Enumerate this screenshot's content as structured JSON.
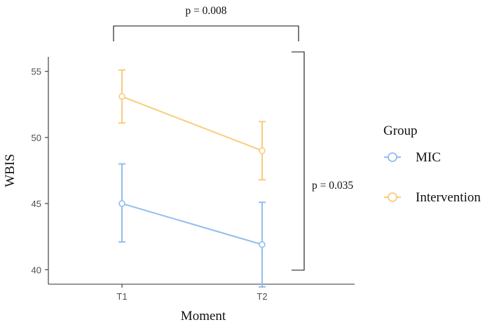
{
  "chart_data": {
    "type": "line",
    "xlabel": "Moment",
    "ylabel": "WBIS",
    "categories": [
      "T1",
      "T2"
    ],
    "ylim": [
      38.9,
      56.1
    ],
    "yticks": [
      40,
      45,
      50,
      55
    ],
    "grid": false,
    "legend": {
      "title": "Group",
      "placement": "right"
    },
    "series": [
      {
        "name": "MIC",
        "color": "#92BDEE",
        "values": [
          45.0,
          41.9
        ],
        "error_low": [
          42.1,
          38.7
        ],
        "error_high": [
          48.0,
          45.1
        ]
      },
      {
        "name": "Intervention",
        "color": "#F8CD7C",
        "values": [
          53.1,
          49.0
        ],
        "error_low": [
          51.1,
          46.8
        ],
        "error_high": [
          55.1,
          51.2
        ]
      }
    ],
    "annotations": [
      {
        "text": "p = 0.008",
        "between": "T1–T2"
      },
      {
        "text": "p = 0.035",
        "between": "MIC–Intervention"
      }
    ]
  }
}
